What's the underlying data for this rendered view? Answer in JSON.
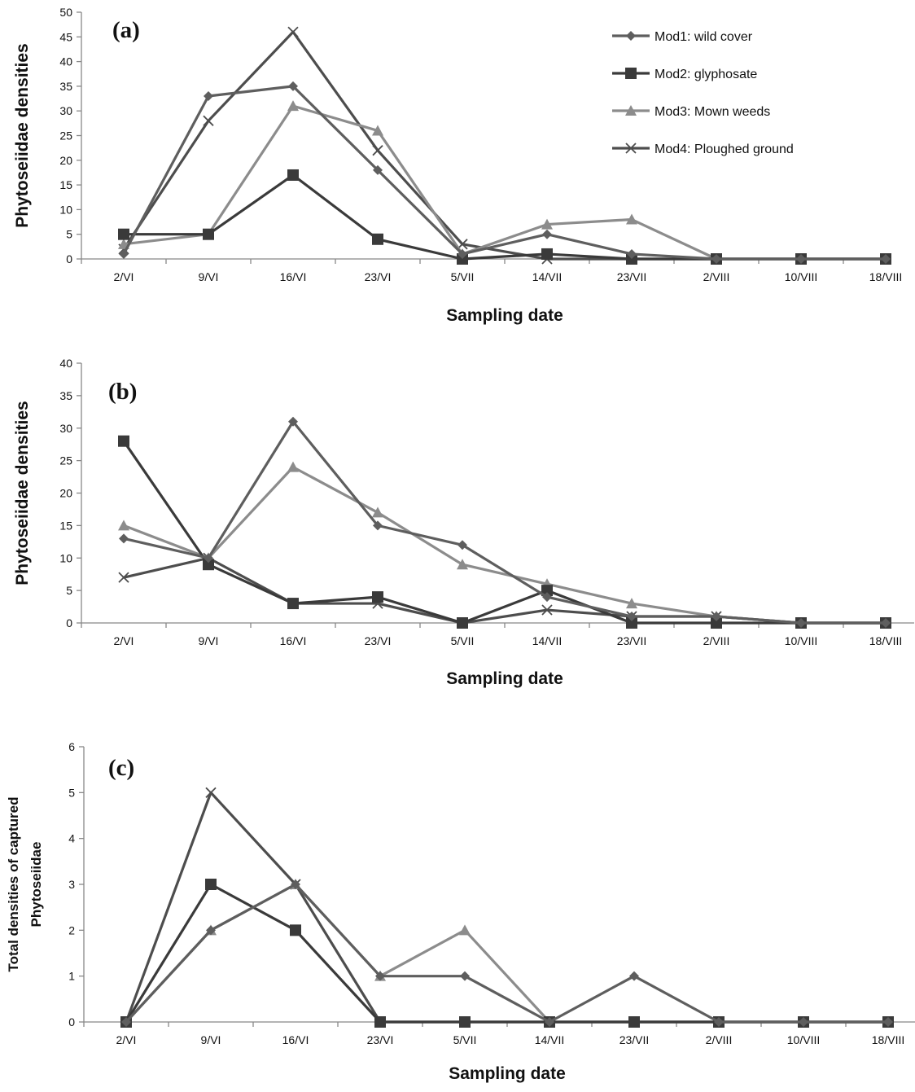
{
  "series_styles": [
    {
      "name": "Mod1: wild cover",
      "color": "#5e5e5e",
      "marker": "diamond"
    },
    {
      "name": "Mod2: glyphosate",
      "color": "#3a3a3a",
      "marker": "square"
    },
    {
      "name": "Mod3: Mown weeds",
      "color": "#8c8c8c",
      "marker": "triangle"
    },
    {
      "name": "Mod4: Ploughed ground",
      "color": "#4d4d4d",
      "marker": "x"
    }
  ],
  "chart_data": [
    {
      "type": "line",
      "panel": "(a)",
      "xlabel": "Sampling date",
      "ylabel": "Phytoseiidae densities",
      "ylim": [
        0,
        50
      ],
      "yticks": [
        0,
        5,
        10,
        15,
        20,
        25,
        30,
        35,
        40,
        45,
        50
      ],
      "legend": "top-right",
      "categories": [
        "2/VI",
        "9/VI",
        "16/VI",
        "23/VI",
        "5/VII",
        "14/VII",
        "23/VII",
        "2/VIII",
        "10/VIII",
        "18/VIII"
      ],
      "series": [
        {
          "name": "Mod1: wild cover",
          "values": [
            1,
            33,
            35,
            18,
            1,
            5,
            1,
            0,
            0,
            0
          ]
        },
        {
          "name": "Mod2: glyphosate",
          "values": [
            5,
            5,
            17,
            4,
            0,
            1,
            0,
            0,
            0,
            0
          ]
        },
        {
          "name": "Mod3: Mown weeds",
          "values": [
            3,
            5,
            31,
            26,
            1,
            7,
            8,
            0,
            0,
            0
          ]
        },
        {
          "name": "Mod4: Ploughed ground",
          "values": [
            2,
            28,
            46,
            22,
            3,
            0,
            0,
            0,
            0,
            0
          ]
        }
      ]
    },
    {
      "type": "line",
      "panel": "(b)",
      "xlabel": "Sampling date",
      "ylabel": "Phytoseiidae densities",
      "ylim": [
        0,
        40
      ],
      "yticks": [
        0,
        5,
        10,
        15,
        20,
        25,
        30,
        35,
        40
      ],
      "categories": [
        "2/VI",
        "9/VI",
        "16/VI",
        "23/VI",
        "5/VII",
        "14/VII",
        "23/VII",
        "2/VIII",
        "10/VIII",
        "18/VIII"
      ],
      "series": [
        {
          "name": "Mod1: wild cover",
          "values": [
            13,
            10,
            31,
            15,
            12,
            4,
            1,
            1,
            0,
            0
          ]
        },
        {
          "name": "Mod2: glyphosate",
          "values": [
            28,
            9,
            3,
            4,
            0,
            5,
            0,
            0,
            0,
            0
          ]
        },
        {
          "name": "Mod3: Mown weeds",
          "values": [
            15,
            10,
            24,
            17,
            9,
            6,
            3,
            1,
            0,
            0
          ]
        },
        {
          "name": "Mod4: Ploughed ground",
          "values": [
            7,
            10,
            3,
            3,
            0,
            2,
            1,
            1,
            0,
            0
          ]
        }
      ]
    },
    {
      "type": "line",
      "panel": "(c)",
      "xlabel": "Sampling date",
      "ylabel": [
        "Total densities of captured",
        "Phytoseiidae"
      ],
      "ylim": [
        0,
        6
      ],
      "yticks": [
        0,
        1,
        2,
        3,
        4,
        5,
        6
      ],
      "categories": [
        "2/VI",
        "9/VI",
        "16/VI",
        "23/VI",
        "5/VII",
        "14/VII",
        "23/VII",
        "2/VIII",
        "10/VIII",
        "18/VIII"
      ],
      "series": [
        {
          "name": "Mod1: wild cover",
          "values": [
            0,
            2,
            3,
            1,
            1,
            0,
            1,
            0,
            0,
            0
          ]
        },
        {
          "name": "Mod2: glyphosate",
          "values": [
            0,
            3,
            2,
            0,
            0,
            0,
            0,
            0,
            0,
            0
          ]
        },
        {
          "name": "Mod3: Mown weeds",
          "values": [
            0,
            2,
            3,
            1,
            2,
            0,
            0,
            0,
            0,
            0
          ]
        },
        {
          "name": "Mod4: Ploughed ground",
          "values": [
            0,
            5,
            3,
            0,
            0,
            0,
            0,
            0,
            0,
            0
          ]
        }
      ]
    }
  ]
}
